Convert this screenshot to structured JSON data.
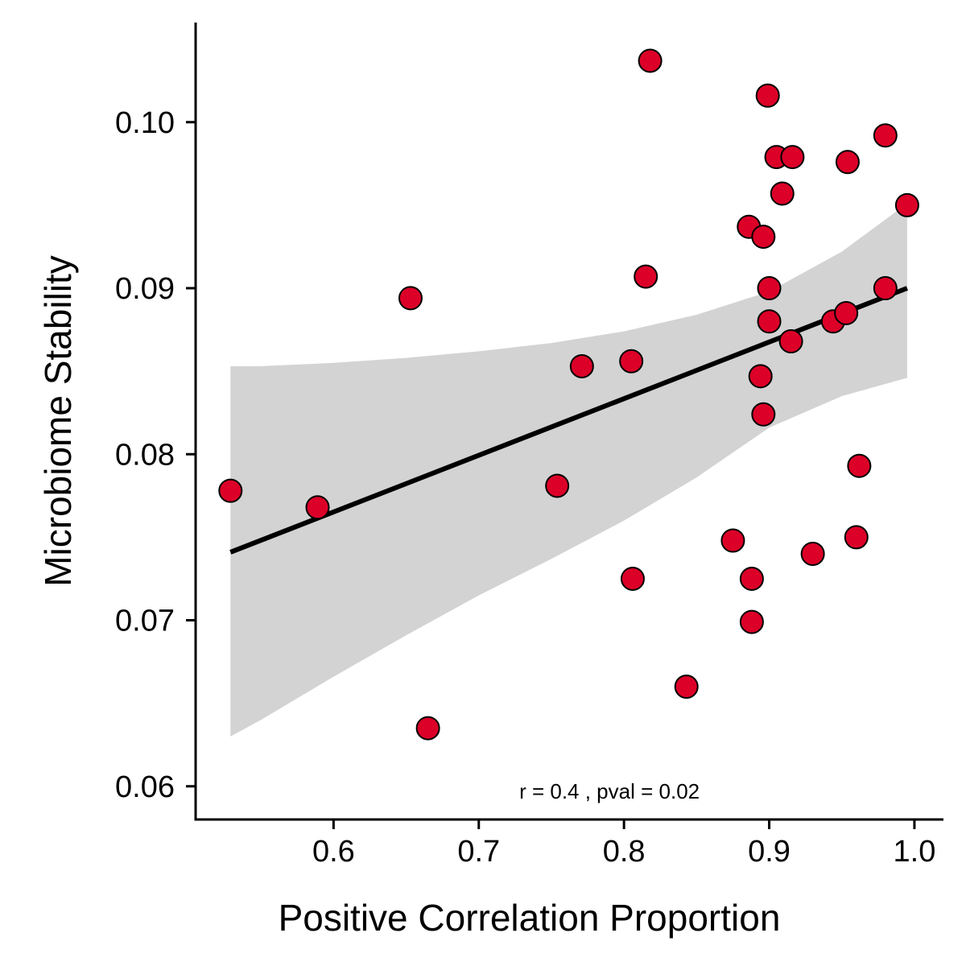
{
  "chart_data": {
    "type": "scatter",
    "xlabel": "Positive Correlation Proportion",
    "ylabel": "Microbiome Stability",
    "xlim": [
      0.505,
      1.02
    ],
    "ylim": [
      0.058,
      0.106
    ],
    "x_ticks": [
      0.6,
      0.7,
      0.8,
      0.9,
      1.0
    ],
    "x_tick_labels": [
      "0.6",
      "0.7",
      "0.8",
      "0.9",
      "1.0"
    ],
    "y_ticks": [
      0.06,
      0.07,
      0.08,
      0.09,
      0.1
    ],
    "y_tick_labels": [
      "0.06",
      "0.07",
      "0.08",
      "0.09",
      "0.10"
    ],
    "grid": false,
    "annotation": {
      "text": "r = 0.4 , pval = 0.02",
      "x": 0.79,
      "y": 0.0597
    },
    "point_color": "#dc0028",
    "point_edge_color": "#000000",
    "fit_color": "#000000",
    "band_color": "#d3d3d3",
    "points": [
      {
        "x": 0.529,
        "y": 0.0778
      },
      {
        "x": 0.589,
        "y": 0.0768
      },
      {
        "x": 0.653,
        "y": 0.0894
      },
      {
        "x": 0.665,
        "y": 0.0635
      },
      {
        "x": 0.754,
        "y": 0.0781
      },
      {
        "x": 0.771,
        "y": 0.0853
      },
      {
        "x": 0.806,
        "y": 0.0725
      },
      {
        "x": 0.805,
        "y": 0.0856
      },
      {
        "x": 0.815,
        "y": 0.0907
      },
      {
        "x": 0.818,
        "y": 0.1037
      },
      {
        "x": 0.843,
        "y": 0.066
      },
      {
        "x": 0.875,
        "y": 0.0748
      },
      {
        "x": 0.886,
        "y": 0.0937
      },
      {
        "x": 0.888,
        "y": 0.0725
      },
      {
        "x": 0.888,
        "y": 0.0699
      },
      {
        "x": 0.894,
        "y": 0.0847
      },
      {
        "x": 0.896,
        "y": 0.0931
      },
      {
        "x": 0.896,
        "y": 0.0824
      },
      {
        "x": 0.899,
        "y": 0.1016
      },
      {
        "x": 0.9,
        "y": 0.09
      },
      {
        "x": 0.9,
        "y": 0.088
      },
      {
        "x": 0.905,
        "y": 0.0979
      },
      {
        "x": 0.909,
        "y": 0.0957
      },
      {
        "x": 0.915,
        "y": 0.0868
      },
      {
        "x": 0.916,
        "y": 0.0979
      },
      {
        "x": 0.93,
        "y": 0.074
      },
      {
        "x": 0.944,
        "y": 0.088
      },
      {
        "x": 0.953,
        "y": 0.0885
      },
      {
        "x": 0.954,
        "y": 0.0976
      },
      {
        "x": 0.96,
        "y": 0.075
      },
      {
        "x": 0.962,
        "y": 0.0793
      },
      {
        "x": 0.98,
        "y": 0.0992
      },
      {
        "x": 0.98,
        "y": 0.09
      },
      {
        "x": 0.995,
        "y": 0.095
      }
    ],
    "fit_line": {
      "x": [
        0.529,
        0.995
      ],
      "y": [
        0.0741,
        0.09
      ]
    },
    "confidence_band": {
      "x": [
        0.529,
        0.55,
        0.6,
        0.65,
        0.7,
        0.75,
        0.8,
        0.85,
        0.9,
        0.95,
        0.995
      ],
      "upper": [
        0.0853,
        0.0853,
        0.0855,
        0.0858,
        0.0862,
        0.0867,
        0.0874,
        0.0884,
        0.0898,
        0.0922,
        0.0951
      ],
      "lower": [
        0.063,
        0.064,
        0.0666,
        0.0691,
        0.0715,
        0.0737,
        0.076,
        0.0786,
        0.0816,
        0.0835,
        0.0846
      ]
    }
  }
}
